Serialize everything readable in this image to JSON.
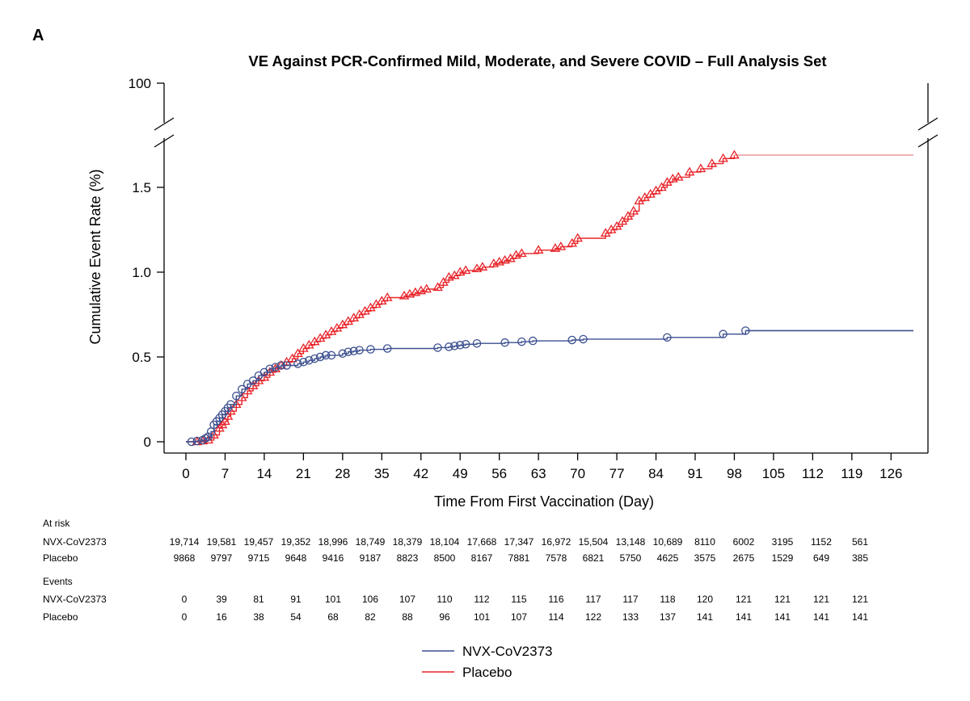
{
  "panel_label": "A",
  "colors": {
    "vaccine": "#3b4f8f",
    "placebo": "#e8242a",
    "placebo_tail": "#f0a0a0",
    "axis": "#000000"
  },
  "chart_data": {
    "type": "line",
    "title": "VE Against PCR-Confirmed Mild, Moderate, and Severe COVID – Full Analysis Set",
    "xlabel": "Time From First Vaccination (Day)",
    "ylabel": "Cumulative Event Rate (%)",
    "xlim": [
      0,
      130
    ],
    "ylim": [
      0,
      1.8
    ],
    "y_axis_break": true,
    "y_top_tick": "100",
    "x_ticks": [
      0,
      7,
      14,
      21,
      28,
      35,
      42,
      49,
      56,
      63,
      70,
      77,
      84,
      91,
      98,
      105,
      112,
      119,
      126
    ],
    "y_ticks": [
      0,
      0.5,
      1.0,
      1.5
    ],
    "y_tick_labels": [
      "0",
      "0.5",
      "1.0",
      "1.5"
    ],
    "legend_position": "bottom",
    "series": [
      {
        "name": "NVX-CoV2373",
        "marker": "circle",
        "end_x": 130,
        "points": [
          [
            0,
            0
          ],
          [
            1,
            0
          ],
          [
            2,
            0.005
          ],
          [
            3,
            0.01
          ],
          [
            3.5,
            0.02
          ],
          [
            4,
            0.03
          ],
          [
            4.5,
            0.06
          ],
          [
            5,
            0.1
          ],
          [
            5.5,
            0.12
          ],
          [
            6,
            0.14
          ],
          [
            6.5,
            0.16
          ],
          [
            7,
            0.18
          ],
          [
            7.5,
            0.2
          ],
          [
            8,
            0.22
          ],
          [
            9,
            0.27
          ],
          [
            10,
            0.31
          ],
          [
            11,
            0.34
          ],
          [
            12,
            0.36
          ],
          [
            13,
            0.39
          ],
          [
            14,
            0.41
          ],
          [
            15,
            0.43
          ],
          [
            16,
            0.44
          ],
          [
            17,
            0.45
          ],
          [
            18,
            0.45
          ],
          [
            20,
            0.46
          ],
          [
            21,
            0.47
          ],
          [
            22,
            0.48
          ],
          [
            23,
            0.49
          ],
          [
            24,
            0.5
          ],
          [
            25,
            0.51
          ],
          [
            26,
            0.51
          ],
          [
            28,
            0.52
          ],
          [
            29,
            0.53
          ],
          [
            30,
            0.535
          ],
          [
            31,
            0.54
          ],
          [
            33,
            0.545
          ],
          [
            36,
            0.55
          ],
          [
            45,
            0.555
          ],
          [
            47,
            0.56
          ],
          [
            48,
            0.565
          ],
          [
            49,
            0.57
          ],
          [
            50,
            0.575
          ],
          [
            52,
            0.58
          ],
          [
            57,
            0.585
          ],
          [
            60,
            0.59
          ],
          [
            62,
            0.595
          ],
          [
            69,
            0.6
          ],
          [
            71,
            0.605
          ],
          [
            86,
            0.615
          ],
          [
            96,
            0.635
          ],
          [
            100,
            0.655
          ]
        ]
      },
      {
        "name": "Placebo",
        "marker": "triangle",
        "end_x": 130,
        "points": [
          [
            0,
            0
          ],
          [
            2,
            0
          ],
          [
            3,
            0.005
          ],
          [
            4,
            0.01
          ],
          [
            5,
            0.04
          ],
          [
            6,
            0.08
          ],
          [
            6.5,
            0.1
          ],
          [
            7,
            0.12
          ],
          [
            7.5,
            0.15
          ],
          [
            8,
            0.18
          ],
          [
            9,
            0.22
          ],
          [
            10,
            0.26
          ],
          [
            11,
            0.3
          ],
          [
            12,
            0.33
          ],
          [
            13,
            0.36
          ],
          [
            14,
            0.38
          ],
          [
            15,
            0.41
          ],
          [
            16,
            0.43
          ],
          [
            17,
            0.45
          ],
          [
            18,
            0.47
          ],
          [
            19,
            0.49
          ],
          [
            20,
            0.52
          ],
          [
            21,
            0.55
          ],
          [
            22,
            0.57
          ],
          [
            23,
            0.59
          ],
          [
            24,
            0.61
          ],
          [
            25,
            0.63
          ],
          [
            26,
            0.65
          ],
          [
            27,
            0.67
          ],
          [
            28,
            0.69
          ],
          [
            29,
            0.71
          ],
          [
            30,
            0.73
          ],
          [
            31,
            0.75
          ],
          [
            32,
            0.77
          ],
          [
            33,
            0.79
          ],
          [
            34,
            0.81
          ],
          [
            35,
            0.83
          ],
          [
            36,
            0.85
          ],
          [
            39,
            0.86
          ],
          [
            40,
            0.87
          ],
          [
            41,
            0.88
          ],
          [
            42,
            0.89
          ],
          [
            43,
            0.9
          ],
          [
            45,
            0.91
          ],
          [
            46,
            0.94
          ],
          [
            47,
            0.97
          ],
          [
            48,
            0.98
          ],
          [
            49,
            1.0
          ],
          [
            50,
            1.01
          ],
          [
            52,
            1.02
          ],
          [
            53,
            1.03
          ],
          [
            55,
            1.05
          ],
          [
            56,
            1.06
          ],
          [
            57,
            1.07
          ],
          [
            58,
            1.08
          ],
          [
            59,
            1.1
          ],
          [
            60,
            1.11
          ],
          [
            63,
            1.13
          ],
          [
            66,
            1.14
          ],
          [
            67,
            1.15
          ],
          [
            69,
            1.17
          ],
          [
            70,
            1.2
          ],
          [
            75,
            1.23
          ],
          [
            76,
            1.25
          ],
          [
            77,
            1.27
          ],
          [
            78,
            1.3
          ],
          [
            79,
            1.33
          ],
          [
            80,
            1.36
          ],
          [
            81,
            1.42
          ],
          [
            82,
            1.44
          ],
          [
            83,
            1.46
          ],
          [
            84,
            1.48
          ],
          [
            85,
            1.5
          ],
          [
            86,
            1.53
          ],
          [
            87,
            1.55
          ],
          [
            88,
            1.56
          ],
          [
            90,
            1.59
          ],
          [
            92,
            1.61
          ],
          [
            94,
            1.64
          ],
          [
            96,
            1.67
          ],
          [
            98,
            1.69
          ]
        ]
      }
    ]
  },
  "table": {
    "at_risk_label": "At risk",
    "events_label": "Events",
    "at_risk": [
      {
        "label": "NVX-CoV2373",
        "values": [
          "19,714",
          "19,581",
          "19,457",
          "19,352",
          "18,996",
          "18,749",
          "18,379",
          "18,104",
          "17,668",
          "17,347",
          "16,972",
          "15,504",
          "13,148",
          "10,689",
          "8110",
          "6002",
          "3195",
          "1152",
          "561"
        ]
      },
      {
        "label": "Placebo",
        "values": [
          "9868",
          "9797",
          "9715",
          "9648",
          "9416",
          "9187",
          "8823",
          "8500",
          "8167",
          "7881",
          "7578",
          "6821",
          "5750",
          "4625",
          "3575",
          "2675",
          "1529",
          "649",
          "385"
        ]
      }
    ],
    "events": [
      {
        "label": "NVX-CoV2373",
        "values": [
          "0",
          "39",
          "81",
          "91",
          "101",
          "106",
          "107",
          "110",
          "112",
          "115",
          "116",
          "117",
          "117",
          "118",
          "120",
          "121",
          "121",
          "121",
          "121"
        ]
      },
      {
        "label": "Placebo",
        "values": [
          "0",
          "16",
          "38",
          "54",
          "68",
          "82",
          "88",
          "96",
          "101",
          "107",
          "114",
          "122",
          "133",
          "137",
          "141",
          "141",
          "141",
          "141",
          "141"
        ]
      }
    ]
  },
  "legend": [
    {
      "label": "NVX-CoV2373",
      "color": "#3b4f8f"
    },
    {
      "label": "Placebo",
      "color": "#e8242a"
    }
  ]
}
